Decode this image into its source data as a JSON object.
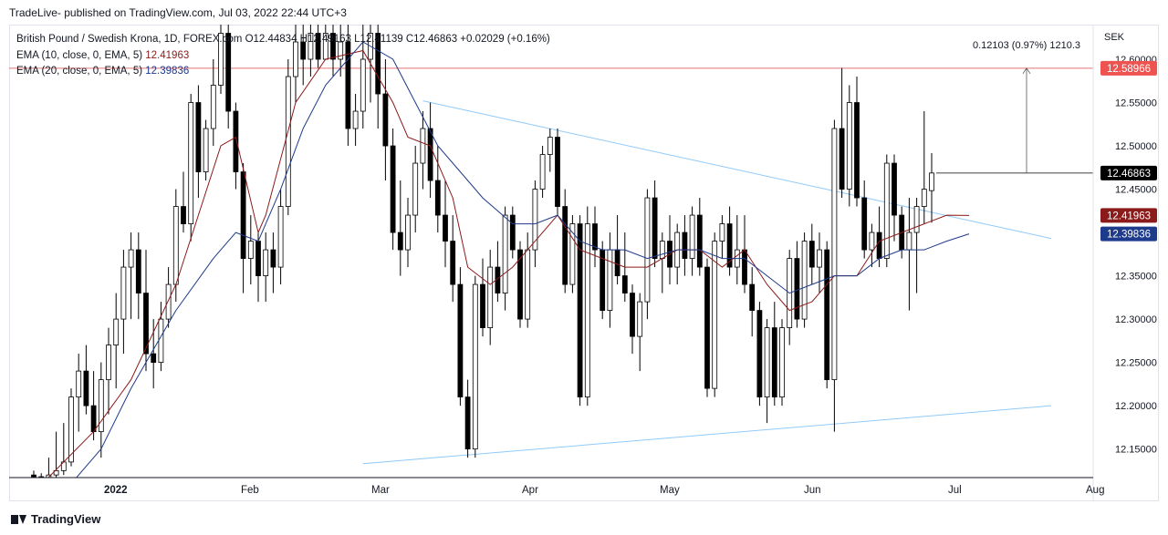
{
  "header": {
    "publisher": "TradeLive- published on TradingView.com, Jul 03, 2022 22:44 UTC+3"
  },
  "legend": {
    "symbol": "British Pound / Swedish Krona, 1D, FOREX.com",
    "ohlc": "O12.44834 H12.49163 L12.41139 C12.46863 +0.02029 (+0.16%)",
    "ema10_label": "EMA (10, close, 0, EMA, 5)",
    "ema10_value": "12.41963",
    "ema20_label": "EMA (20, close, 0, EMA, 5)",
    "ema20_value": "12.39836"
  },
  "footer": {
    "brand": "TradingView"
  },
  "colors": {
    "bull": "#ffffff",
    "bear": "#000000",
    "ema10": "#8b1a1a",
    "ema20": "#1e3a8a",
    "trend": "#90caf9",
    "level": "#e57373"
  },
  "chart_data": {
    "type": "candlestick",
    "currency_label": "SEK",
    "yaxis_ticks": [
      "12.60000",
      "12.55000",
      "12.50000",
      "12.45000",
      "12.40000",
      "12.35000",
      "12.30000",
      "12.25000",
      "12.20000",
      "12.15000"
    ],
    "xaxis_ticks": [
      "2022",
      "Feb",
      "Mar",
      "Apr",
      "May",
      "Jun",
      "Jul",
      "Aug"
    ],
    "ylim": [
      12.117,
      12.64
    ],
    "price_labels": {
      "resistance": "12.58966",
      "last": "12.46863",
      "ema10": "12.41963",
      "ema20": "12.39836"
    },
    "resistance_level": 12.58966,
    "measure": {
      "text": "0.12103 (0.97%) 1210.3",
      "from": 12.46863,
      "to": 12.58966
    },
    "trendlines": [
      {
        "name": "upper",
        "from": [
          52,
          12.552
        ],
        "to": [
          136,
          12.393
        ]
      },
      {
        "name": "lower",
        "from": [
          44,
          12.133
        ],
        "to": [
          136,
          12.2
        ]
      }
    ],
    "candles": [
      {
        "o": 12.12,
        "h": 12.125,
        "l": 12.115,
        "c": 12.118
      },
      {
        "o": 12.118,
        "h": 12.122,
        "l": 12.11,
        "c": 12.115
      },
      {
        "o": 12.115,
        "h": 12.14,
        "l": 12.11,
        "c": 12.12
      },
      {
        "o": 12.12,
        "h": 12.17,
        "l": 12.115,
        "c": 12.125
      },
      {
        "o": 12.125,
        "h": 12.18,
        "l": 12.12,
        "c": 12.135
      },
      {
        "o": 12.135,
        "h": 12.22,
        "l": 12.13,
        "c": 12.21
      },
      {
        "o": 12.21,
        "h": 12.26,
        "l": 12.17,
        "c": 12.24
      },
      {
        "o": 12.24,
        "h": 12.27,
        "l": 12.19,
        "c": 12.2
      },
      {
        "o": 12.2,
        "h": 12.24,
        "l": 12.16,
        "c": 12.17
      },
      {
        "o": 12.17,
        "h": 12.25,
        "l": 12.14,
        "c": 12.23
      },
      {
        "o": 12.23,
        "h": 12.29,
        "l": 12.19,
        "c": 12.27
      },
      {
        "o": 12.27,
        "h": 12.33,
        "l": 12.22,
        "c": 12.3
      },
      {
        "o": 12.3,
        "h": 12.38,
        "l": 12.26,
        "c": 12.36
      },
      {
        "o": 12.36,
        "h": 12.4,
        "l": 12.3,
        "c": 12.38
      },
      {
        "o": 12.38,
        "h": 12.4,
        "l": 12.3,
        "c": 12.33
      },
      {
        "o": 12.33,
        "h": 12.38,
        "l": 12.24,
        "c": 12.26
      },
      {
        "o": 12.26,
        "h": 12.3,
        "l": 12.22,
        "c": 12.25
      },
      {
        "o": 12.25,
        "h": 12.32,
        "l": 12.24,
        "c": 12.3
      },
      {
        "o": 12.3,
        "h": 12.36,
        "l": 12.29,
        "c": 12.34
      },
      {
        "o": 12.34,
        "h": 12.45,
        "l": 12.32,
        "c": 12.43
      },
      {
        "o": 12.43,
        "h": 12.47,
        "l": 12.4,
        "c": 12.41
      },
      {
        "o": 12.41,
        "h": 12.56,
        "l": 12.39,
        "c": 12.55
      },
      {
        "o": 12.55,
        "h": 12.57,
        "l": 12.44,
        "c": 12.47
      },
      {
        "o": 12.47,
        "h": 12.53,
        "l": 12.46,
        "c": 12.52
      },
      {
        "o": 12.52,
        "h": 12.6,
        "l": 12.5,
        "c": 12.57
      },
      {
        "o": 12.57,
        "h": 12.64,
        "l": 12.56,
        "c": 12.63
      },
      {
        "o": 12.63,
        "h": 12.64,
        "l": 12.52,
        "c": 12.54
      },
      {
        "o": 12.54,
        "h": 12.55,
        "l": 12.45,
        "c": 12.47
      },
      {
        "o": 12.47,
        "h": 12.48,
        "l": 12.33,
        "c": 12.37
      },
      {
        "o": 12.37,
        "h": 12.42,
        "l": 12.34,
        "c": 12.39
      },
      {
        "o": 12.39,
        "h": 12.4,
        "l": 12.32,
        "c": 12.35
      },
      {
        "o": 12.35,
        "h": 12.4,
        "l": 12.32,
        "c": 12.38
      },
      {
        "o": 12.38,
        "h": 12.4,
        "l": 12.33,
        "c": 12.36
      },
      {
        "o": 12.36,
        "h": 12.45,
        "l": 12.34,
        "c": 12.43
      },
      {
        "o": 12.43,
        "h": 12.6,
        "l": 12.42,
        "c": 12.58
      },
      {
        "o": 12.58,
        "h": 12.64,
        "l": 12.55,
        "c": 12.62
      },
      {
        "o": 12.62,
        "h": 12.64,
        "l": 12.57,
        "c": 12.6
      },
      {
        "o": 12.6,
        "h": 12.64,
        "l": 12.58,
        "c": 12.63
      },
      {
        "o": 12.63,
        "h": 12.64,
        "l": 12.59,
        "c": 12.6
      },
      {
        "o": 12.6,
        "h": 12.64,
        "l": 12.6,
        "c": 12.63
      },
      {
        "o": 12.63,
        "h": 12.64,
        "l": 12.58,
        "c": 12.6
      },
      {
        "o": 12.6,
        "h": 12.64,
        "l": 12.58,
        "c": 12.62
      },
      {
        "o": 12.62,
        "h": 12.64,
        "l": 12.5,
        "c": 12.52
      },
      {
        "o": 12.52,
        "h": 12.56,
        "l": 12.5,
        "c": 12.54
      },
      {
        "o": 12.54,
        "h": 12.64,
        "l": 12.52,
        "c": 12.6
      },
      {
        "o": 12.6,
        "h": 12.64,
        "l": 12.55,
        "c": 12.63
      },
      {
        "o": 12.63,
        "h": 12.64,
        "l": 12.52,
        "c": 12.56
      },
      {
        "o": 12.56,
        "h": 12.6,
        "l": 12.46,
        "c": 12.5
      },
      {
        "o": 12.5,
        "h": 12.52,
        "l": 12.38,
        "c": 12.4
      },
      {
        "o": 12.4,
        "h": 12.46,
        "l": 12.35,
        "c": 12.38
      },
      {
        "o": 12.38,
        "h": 12.44,
        "l": 12.36,
        "c": 12.42
      },
      {
        "o": 12.42,
        "h": 12.5,
        "l": 12.4,
        "c": 12.48
      },
      {
        "o": 12.48,
        "h": 12.54,
        "l": 12.45,
        "c": 12.52
      },
      {
        "o": 12.52,
        "h": 12.55,
        "l": 12.44,
        "c": 12.46
      },
      {
        "o": 12.46,
        "h": 12.5,
        "l": 12.4,
        "c": 12.42
      },
      {
        "o": 12.42,
        "h": 12.46,
        "l": 12.36,
        "c": 12.39
      },
      {
        "o": 12.39,
        "h": 12.42,
        "l": 12.32,
        "c": 12.34
      },
      {
        "o": 12.34,
        "h": 12.36,
        "l": 12.2,
        "c": 12.21
      },
      {
        "o": 12.21,
        "h": 12.23,
        "l": 12.14,
        "c": 12.15
      },
      {
        "o": 12.15,
        "h": 12.35,
        "l": 12.14,
        "c": 12.34
      },
      {
        "o": 12.34,
        "h": 12.37,
        "l": 12.28,
        "c": 12.29
      },
      {
        "o": 12.29,
        "h": 12.38,
        "l": 12.27,
        "c": 12.36
      },
      {
        "o": 12.36,
        "h": 12.39,
        "l": 12.32,
        "c": 12.33
      },
      {
        "o": 12.33,
        "h": 12.43,
        "l": 12.31,
        "c": 12.42
      },
      {
        "o": 12.42,
        "h": 12.43,
        "l": 12.37,
        "c": 12.38
      },
      {
        "o": 12.38,
        "h": 12.39,
        "l": 12.29,
        "c": 12.3
      },
      {
        "o": 12.3,
        "h": 12.4,
        "l": 12.29,
        "c": 12.38
      },
      {
        "o": 12.38,
        "h": 12.46,
        "l": 12.36,
        "c": 12.45
      },
      {
        "o": 12.45,
        "h": 12.5,
        "l": 12.44,
        "c": 12.49
      },
      {
        "o": 12.49,
        "h": 12.52,
        "l": 12.47,
        "c": 12.51
      },
      {
        "o": 12.51,
        "h": 12.52,
        "l": 12.42,
        "c": 12.43
      },
      {
        "o": 12.43,
        "h": 12.45,
        "l": 12.33,
        "c": 12.34
      },
      {
        "o": 12.34,
        "h": 12.42,
        "l": 12.33,
        "c": 12.41
      },
      {
        "o": 12.41,
        "h": 12.42,
        "l": 12.2,
        "c": 12.21
      },
      {
        "o": 12.21,
        "h": 12.43,
        "l": 12.2,
        "c": 12.41
      },
      {
        "o": 12.41,
        "h": 12.43,
        "l": 12.36,
        "c": 12.38
      },
      {
        "o": 12.38,
        "h": 12.39,
        "l": 12.3,
        "c": 12.31
      },
      {
        "o": 12.31,
        "h": 12.4,
        "l": 12.29,
        "c": 12.38
      },
      {
        "o": 12.38,
        "h": 12.42,
        "l": 12.34,
        "c": 12.35
      },
      {
        "o": 12.35,
        "h": 12.4,
        "l": 12.32,
        "c": 12.33
      },
      {
        "o": 12.33,
        "h": 12.34,
        "l": 12.26,
        "c": 12.28
      },
      {
        "o": 12.28,
        "h": 12.33,
        "l": 12.24,
        "c": 12.32
      },
      {
        "o": 12.32,
        "h": 12.45,
        "l": 12.3,
        "c": 12.44
      },
      {
        "o": 12.44,
        "h": 12.46,
        "l": 12.36,
        "c": 12.37
      },
      {
        "o": 12.37,
        "h": 12.4,
        "l": 12.33,
        "c": 12.39
      },
      {
        "o": 12.39,
        "h": 12.42,
        "l": 12.34,
        "c": 12.36
      },
      {
        "o": 12.36,
        "h": 12.41,
        "l": 12.34,
        "c": 12.4
      },
      {
        "o": 12.4,
        "h": 12.42,
        "l": 12.35,
        "c": 12.37
      },
      {
        "o": 12.37,
        "h": 12.43,
        "l": 12.35,
        "c": 12.42
      },
      {
        "o": 12.42,
        "h": 12.44,
        "l": 12.35,
        "c": 12.36
      },
      {
        "o": 12.36,
        "h": 12.37,
        "l": 12.21,
        "c": 12.22
      },
      {
        "o": 12.22,
        "h": 12.4,
        "l": 12.21,
        "c": 12.39
      },
      {
        "o": 12.39,
        "h": 12.42,
        "l": 12.37,
        "c": 12.41
      },
      {
        "o": 12.41,
        "h": 12.43,
        "l": 12.35,
        "c": 12.36
      },
      {
        "o": 12.36,
        "h": 12.42,
        "l": 12.34,
        "c": 12.38
      },
      {
        "o": 12.38,
        "h": 12.42,
        "l": 12.33,
        "c": 12.34
      },
      {
        "o": 12.34,
        "h": 12.36,
        "l": 12.28,
        "c": 12.31
      },
      {
        "o": 12.31,
        "h": 12.32,
        "l": 12.2,
        "c": 12.21
      },
      {
        "o": 12.21,
        "h": 12.3,
        "l": 12.18,
        "c": 12.29
      },
      {
        "o": 12.29,
        "h": 12.32,
        "l": 12.2,
        "c": 12.21
      },
      {
        "o": 12.21,
        "h": 12.3,
        "l": 12.2,
        "c": 12.29
      },
      {
        "o": 12.29,
        "h": 12.38,
        "l": 12.27,
        "c": 12.37
      },
      {
        "o": 12.37,
        "h": 12.39,
        "l": 12.29,
        "c": 12.3
      },
      {
        "o": 12.3,
        "h": 12.4,
        "l": 12.29,
        "c": 12.39
      },
      {
        "o": 12.39,
        "h": 12.41,
        "l": 12.34,
        "c": 12.36
      },
      {
        "o": 12.36,
        "h": 12.4,
        "l": 12.33,
        "c": 12.38
      },
      {
        "o": 12.38,
        "h": 12.39,
        "l": 12.22,
        "c": 12.23
      },
      {
        "o": 12.23,
        "h": 12.53,
        "l": 12.17,
        "c": 12.52
      },
      {
        "o": 12.52,
        "h": 12.59,
        "l": 12.44,
        "c": 12.45
      },
      {
        "o": 12.45,
        "h": 12.57,
        "l": 12.43,
        "c": 12.55
      },
      {
        "o": 12.55,
        "h": 12.58,
        "l": 12.43,
        "c": 12.44
      },
      {
        "o": 12.44,
        "h": 12.46,
        "l": 12.37,
        "c": 12.38
      },
      {
        "o": 12.38,
        "h": 12.41,
        "l": 12.36,
        "c": 12.4
      },
      {
        "o": 12.4,
        "h": 12.43,
        "l": 12.36,
        "c": 12.37
      },
      {
        "o": 12.37,
        "h": 12.49,
        "l": 12.36,
        "c": 12.48
      },
      {
        "o": 12.48,
        "h": 12.49,
        "l": 12.39,
        "c": 12.42
      },
      {
        "o": 12.42,
        "h": 12.43,
        "l": 12.37,
        "c": 12.38
      },
      {
        "o": 12.38,
        "h": 12.44,
        "l": 12.31,
        "c": 12.4
      },
      {
        "o": 12.4,
        "h": 12.44,
        "l": 12.33,
        "c": 12.43
      },
      {
        "o": 12.43,
        "h": 12.54,
        "l": 12.41,
        "c": 12.45
      },
      {
        "o": 12.44834,
        "h": 12.49163,
        "l": 12.41139,
        "c": 12.46863
      }
    ],
    "ema10": [
      [
        0,
        12.1
      ],
      [
        8,
        12.17
      ],
      [
        13,
        12.23
      ],
      [
        19,
        12.34
      ],
      [
        22,
        12.42
      ],
      [
        25,
        12.5
      ],
      [
        27,
        12.51
      ],
      [
        30,
        12.4
      ],
      [
        31,
        12.42
      ],
      [
        35,
        12.55
      ],
      [
        39,
        12.6
      ],
      [
        44,
        12.61
      ],
      [
        48,
        12.55
      ],
      [
        50,
        12.51
      ],
      [
        53,
        12.5
      ],
      [
        56,
        12.44
      ],
      [
        58,
        12.36
      ],
      [
        61,
        12.34
      ],
      [
        64,
        12.36
      ],
      [
        67,
        12.39
      ],
      [
        70,
        12.42
      ],
      [
        73,
        12.38
      ],
      [
        76,
        12.37
      ],
      [
        79,
        12.36
      ],
      [
        82,
        12.36
      ],
      [
        86,
        12.38
      ],
      [
        89,
        12.38
      ],
      [
        92,
        12.36
      ],
      [
        95,
        12.38
      ],
      [
        98,
        12.34
      ],
      [
        101,
        12.31
      ],
      [
        104,
        12.32
      ],
      [
        107,
        12.35
      ],
      [
        110,
        12.35
      ],
      [
        113,
        12.39
      ],
      [
        116,
        12.4
      ],
      [
        119,
        12.41
      ],
      [
        122,
        12.42
      ],
      [
        125,
        12.41962
      ]
    ],
    "ema20": [
      [
        3,
        12.09
      ],
      [
        9,
        12.15
      ],
      [
        13,
        12.22
      ],
      [
        19,
        12.31
      ],
      [
        24,
        12.37
      ],
      [
        27,
        12.4
      ],
      [
        30,
        12.39
      ],
      [
        33,
        12.45
      ],
      [
        36,
        12.52
      ],
      [
        39,
        12.57
      ],
      [
        44,
        12.62
      ],
      [
        48,
        12.6
      ],
      [
        51,
        12.55
      ],
      [
        54,
        12.5
      ],
      [
        57,
        12.47
      ],
      [
        60,
        12.44
      ],
      [
        64,
        12.41
      ],
      [
        67,
        12.41
      ],
      [
        70,
        12.42
      ],
      [
        73,
        12.39
      ],
      [
        76,
        12.38
      ],
      [
        79,
        12.38
      ],
      [
        82,
        12.37
      ],
      [
        86,
        12.38
      ],
      [
        89,
        12.38
      ],
      [
        92,
        12.37
      ],
      [
        95,
        12.37
      ],
      [
        98,
        12.35
      ],
      [
        101,
        12.33
      ],
      [
        104,
        12.34
      ],
      [
        107,
        12.35
      ],
      [
        110,
        12.35
      ],
      [
        113,
        12.37
      ],
      [
        116,
        12.38
      ],
      [
        119,
        12.38
      ],
      [
        122,
        12.39
      ],
      [
        125,
        12.39836
      ]
    ]
  }
}
